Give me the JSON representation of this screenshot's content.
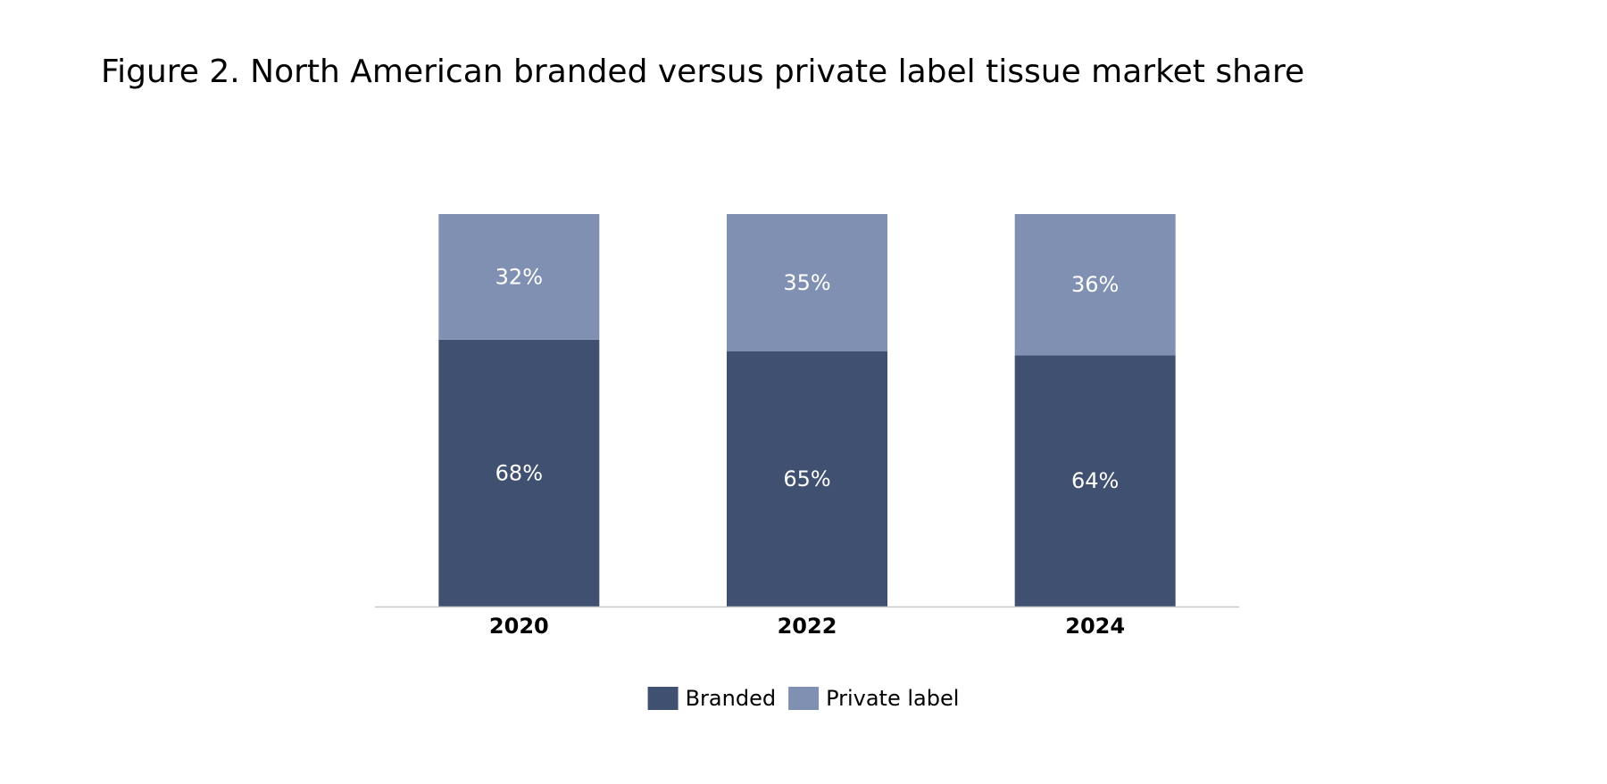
{
  "chart_data": {
    "type": "bar",
    "stacked": true,
    "title": "Figure 2. North American branded versus private label tissue market share",
    "categories": [
      "2020",
      "2022",
      "2024"
    ],
    "series": [
      {
        "name": "Branded",
        "values": [
          68,
          65,
          64
        ],
        "labels": [
          "68%",
          "65%",
          "64%"
        ],
        "color": "#405070"
      },
      {
        "name": "Private label",
        "values": [
          32,
          35,
          36
        ],
        "labels": [
          "32%",
          "35%",
          "36%"
        ],
        "color": "#8090b3"
      }
    ],
    "ylim": [
      0,
      100
    ],
    "value_unit": "%",
    "xlabel": "",
    "ylabel": "",
    "grid": false,
    "y_axis_shown": false,
    "legend_position": "bottom-center",
    "axis_line_color": "#c8c8c8"
  }
}
